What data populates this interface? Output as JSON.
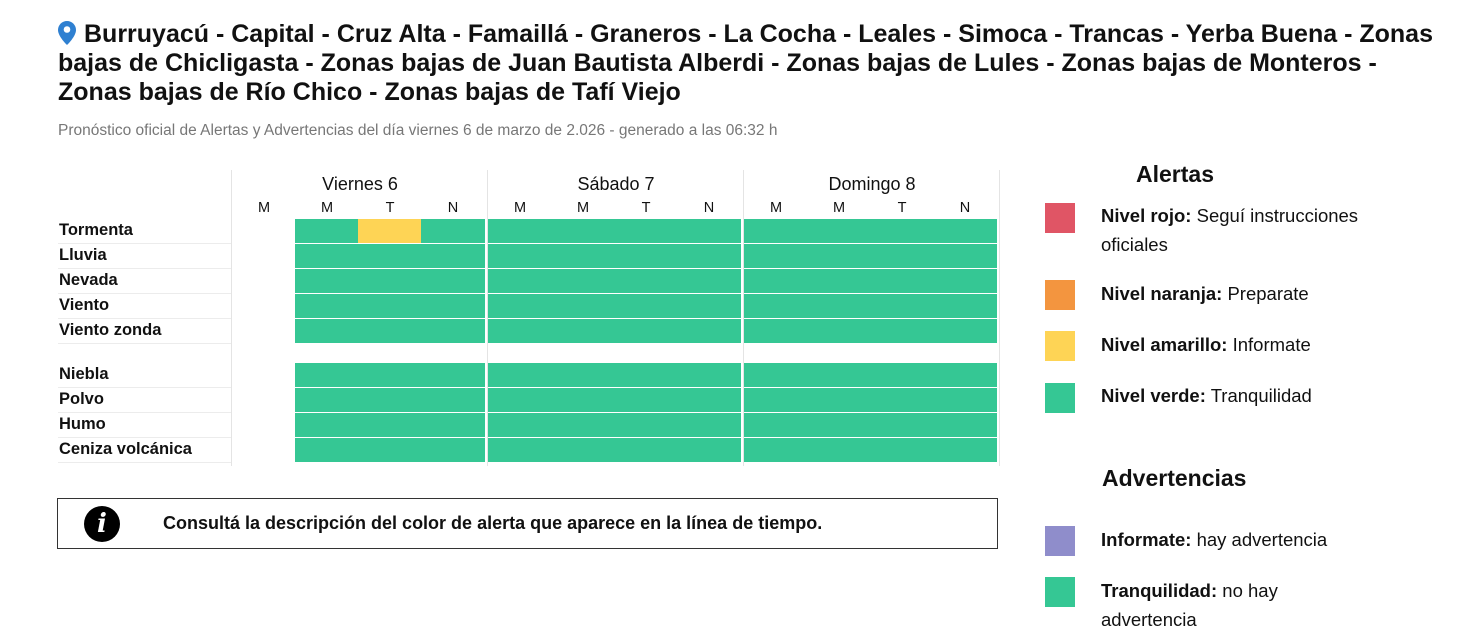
{
  "header": {
    "title": "Burruyacú - Capital - Cruz Alta - Famaillá - Graneros - La Cocha - Leales - Simoca - Trancas - Yerba Buena - Zonas bajas de Chicligasta - Zonas bajas de Juan Bautista Alberdi - Zonas bajas de Lules - Zonas bajas de Monteros - Zonas bajas de Río Chico - Zonas bajas de Tafí Viejo",
    "subtitle": "Pronóstico oficial de Alertas y Advertencias del día viernes 6 de marzo de 2.026 - generado a las 06:32 h",
    "icon": "location-pin-icon"
  },
  "timeline": {
    "days": [
      "Viernes 6",
      "Sábado 7",
      "Domingo 8"
    ],
    "slots": [
      "M",
      "M",
      "T",
      "N"
    ],
    "rows": [
      {
        "label": "Tormenta",
        "levels": [
          "none",
          "verde",
          "amarillo",
          "verde",
          "verde",
          "verde",
          "verde",
          "verde",
          "verde",
          "verde",
          "verde",
          "verde"
        ]
      },
      {
        "label": "Lluvia",
        "levels": [
          "none",
          "verde",
          "verde",
          "verde",
          "verde",
          "verde",
          "verde",
          "verde",
          "verde",
          "verde",
          "verde",
          "verde"
        ]
      },
      {
        "label": "Nevada",
        "levels": [
          "none",
          "verde",
          "verde",
          "verde",
          "verde",
          "verde",
          "verde",
          "verde",
          "verde",
          "verde",
          "verde",
          "verde"
        ]
      },
      {
        "label": "Viento",
        "levels": [
          "none",
          "verde",
          "verde",
          "verde",
          "verde",
          "verde",
          "verde",
          "verde",
          "verde",
          "verde",
          "verde",
          "verde"
        ]
      },
      {
        "label": "Viento zonda",
        "levels": [
          "none",
          "verde",
          "verde",
          "verde",
          "verde",
          "verde",
          "verde",
          "verde",
          "verde",
          "verde",
          "verde",
          "verde"
        ]
      },
      {
        "label": "Niebla",
        "levels": [
          "none",
          "verde",
          "verde",
          "verde",
          "verde",
          "verde",
          "verde",
          "verde",
          "verde",
          "verde",
          "verde",
          "verde"
        ]
      },
      {
        "label": "Polvo",
        "levels": [
          "none",
          "verde",
          "verde",
          "verde",
          "verde",
          "verde",
          "verde",
          "verde",
          "verde",
          "verde",
          "verde",
          "verde"
        ]
      },
      {
        "label": "Humo",
        "levels": [
          "none",
          "verde",
          "verde",
          "verde",
          "verde",
          "verde",
          "verde",
          "verde",
          "verde",
          "verde",
          "verde",
          "verde"
        ]
      },
      {
        "label": "Ceniza volcánica",
        "levels": [
          "none",
          "verde",
          "verde",
          "verde",
          "verde",
          "verde",
          "verde",
          "verde",
          "verde",
          "verde",
          "verde",
          "verde"
        ]
      }
    ]
  },
  "info": {
    "icon": "info-icon",
    "text": "Consultá la descripción del color de alerta que aparece en la línea de tiempo."
  },
  "legend": {
    "alertas_title": "Alertas",
    "alertas": [
      {
        "name": "Nivel rojo:",
        "desc": "Seguí instrucciones oficiales",
        "color": "#e05565"
      },
      {
        "name": "Nivel naranja:",
        "desc": "Preparate",
        "color": "#f3953f"
      },
      {
        "name": "Nivel amarillo:",
        "desc": "Informate",
        "color": "#fed455"
      },
      {
        "name": "Nivel verde:",
        "desc": "Tranquilidad",
        "color": "#35c794"
      }
    ],
    "advertencias_title": "Advertencias",
    "advertencias": [
      {
        "name": "Informate:",
        "desc": "hay advertencia",
        "color": "#8f8dcb"
      },
      {
        "name": "Tranquilidad:",
        "desc": "no hay advertencia",
        "color": "#35c794"
      }
    ]
  },
  "colors": {
    "verde": "#35c794",
    "amarillo": "#fed455",
    "naranja": "#f3953f",
    "rojo": "#e05565",
    "pin": "#2f80d1"
  }
}
